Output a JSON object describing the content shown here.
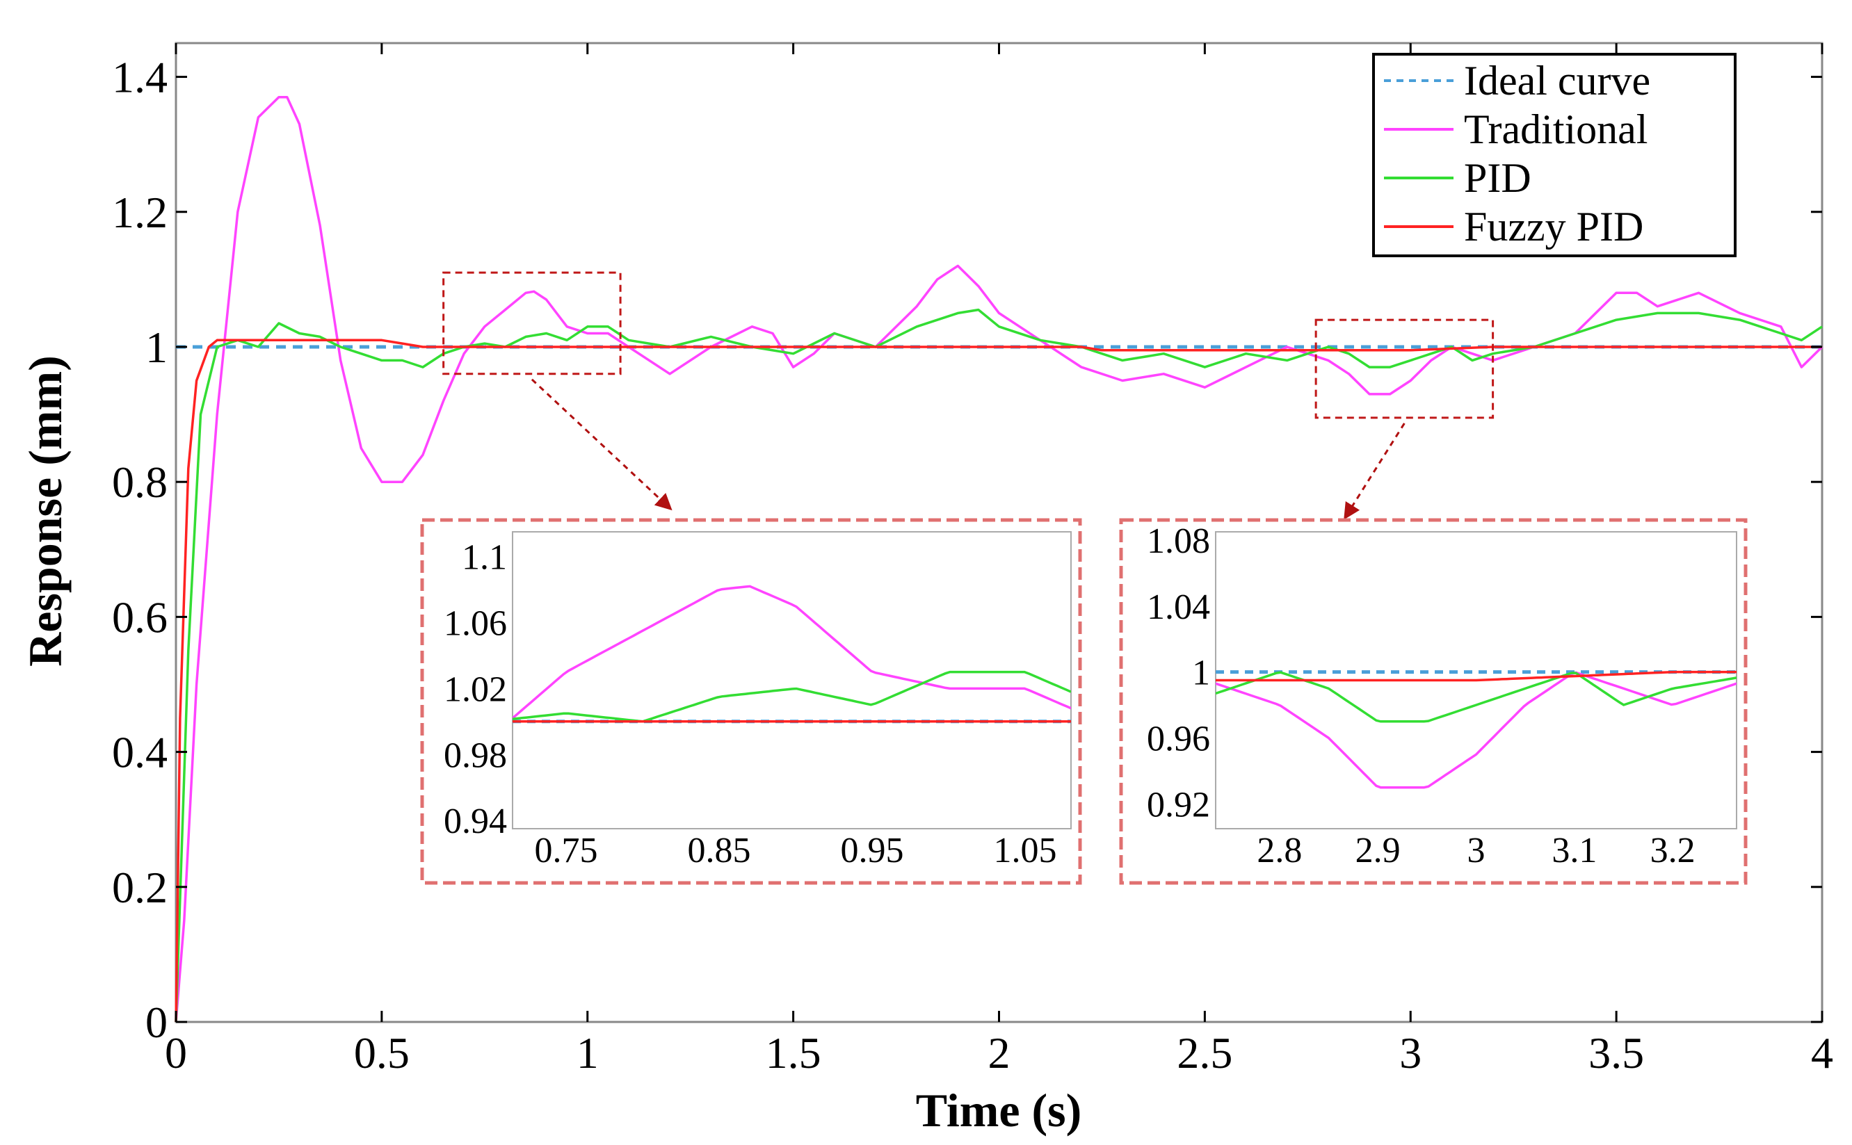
{
  "chart_data": {
    "type": "line",
    "xlabel": "Time (s)",
    "ylabel": "Response (mm)",
    "xlim": [
      0,
      4
    ],
    "ylim": [
      0,
      1.45
    ],
    "xticks": [
      0,
      0.5,
      1,
      1.5,
      2,
      2.5,
      3,
      3.5,
      4
    ],
    "xtick_labels": [
      "0",
      "0.5",
      "1",
      "1.5",
      "2",
      "2.5",
      "3",
      "3.5",
      "4"
    ],
    "yticks": [
      0,
      0.2,
      0.4,
      0.6,
      0.8,
      1,
      1.2,
      1.4
    ],
    "ytick_labels": [
      "0",
      "0.2",
      "0.4",
      "0.6",
      "0.8",
      "1",
      "1.2",
      "1.4"
    ],
    "legend": {
      "position": "top-right",
      "entries": [
        "Ideal curve",
        "Traditional",
        "PID",
        "Fuzzy PID"
      ]
    },
    "series": [
      {
        "name": "Ideal curve",
        "color": "#4a9fd8",
        "style": "dashed",
        "x": [
          0,
          4
        ],
        "y": [
          1.0,
          1.0
        ]
      },
      {
        "name": "Traditional",
        "color": "#ff44ff",
        "style": "solid",
        "x": [
          0,
          0.02,
          0.05,
          0.1,
          0.15,
          0.2,
          0.25,
          0.27,
          0.3,
          0.35,
          0.4,
          0.45,
          0.5,
          0.55,
          0.6,
          0.65,
          0.7,
          0.75,
          0.8,
          0.85,
          0.87,
          0.9,
          0.95,
          1.0,
          1.05,
          1.1,
          1.2,
          1.3,
          1.4,
          1.45,
          1.5,
          1.55,
          1.6,
          1.7,
          1.8,
          1.85,
          1.9,
          1.95,
          2.0,
          2.05,
          2.1,
          2.2,
          2.3,
          2.4,
          2.5,
          2.6,
          2.7,
          2.75,
          2.8,
          2.85,
          2.9,
          2.95,
          3.0,
          3.05,
          3.1,
          3.15,
          3.2,
          3.3,
          3.4,
          3.5,
          3.55,
          3.6,
          3.7,
          3.8,
          3.9,
          3.95,
          4.0
        ],
        "y": [
          0.0,
          0.15,
          0.5,
          0.9,
          1.2,
          1.34,
          1.37,
          1.37,
          1.33,
          1.18,
          0.98,
          0.85,
          0.8,
          0.8,
          0.84,
          0.92,
          0.99,
          1.03,
          1.055,
          1.08,
          1.082,
          1.07,
          1.03,
          1.02,
          1.02,
          1.0,
          0.96,
          1.0,
          1.03,
          1.02,
          0.97,
          0.99,
          1.02,
          1.0,
          1.06,
          1.1,
          1.12,
          1.09,
          1.05,
          1.03,
          1.01,
          0.97,
          0.95,
          0.96,
          0.94,
          0.97,
          1.0,
          0.99,
          0.98,
          0.96,
          0.93,
          0.93,
          0.95,
          0.98,
          1.0,
          0.99,
          0.98,
          1.0,
          1.02,
          1.08,
          1.08,
          1.06,
          1.08,
          1.05,
          1.03,
          0.97,
          1.0
        ]
      },
      {
        "name": "PID",
        "color": "#33dd33",
        "style": "solid",
        "x": [
          0,
          0.03,
          0.06,
          0.1,
          0.15,
          0.2,
          0.25,
          0.3,
          0.35,
          0.4,
          0.45,
          0.5,
          0.55,
          0.6,
          0.65,
          0.7,
          0.75,
          0.8,
          0.85,
          0.9,
          0.95,
          1.0,
          1.05,
          1.1,
          1.2,
          1.3,
          1.4,
          1.5,
          1.6,
          1.7,
          1.8,
          1.9,
          1.95,
          2.0,
          2.1,
          2.2,
          2.3,
          2.4,
          2.5,
          2.6,
          2.7,
          2.8,
          2.85,
          2.9,
          2.95,
          3.0,
          3.05,
          3.1,
          3.15,
          3.2,
          3.3,
          3.4,
          3.5,
          3.6,
          3.7,
          3.8,
          3.9,
          3.95,
          4.0
        ],
        "y": [
          0.0,
          0.55,
          0.9,
          1.0,
          1.01,
          1.0,
          1.035,
          1.02,
          1.015,
          1.0,
          0.99,
          0.98,
          0.98,
          0.97,
          0.99,
          1.0,
          1.005,
          1.0,
          1.015,
          1.02,
          1.01,
          1.03,
          1.03,
          1.01,
          1.0,
          1.015,
          1.0,
          0.99,
          1.02,
          1.0,
          1.03,
          1.05,
          1.055,
          1.03,
          1.01,
          1.0,
          0.98,
          0.99,
          0.97,
          0.99,
          0.98,
          1.0,
          0.99,
          0.97,
          0.97,
          0.98,
          0.99,
          1.0,
          0.98,
          0.99,
          1.0,
          1.02,
          1.04,
          1.05,
          1.05,
          1.04,
          1.02,
          1.01,
          1.03
        ]
      },
      {
        "name": "Fuzzy PID",
        "color": "#ff2222",
        "style": "solid",
        "x": [
          0,
          0.01,
          0.03,
          0.05,
          0.08,
          0.1,
          0.12,
          0.15,
          0.3,
          0.5,
          0.55,
          0.6,
          1.0,
          1.5,
          2.0,
          2.2,
          2.25,
          2.5,
          2.8,
          3.0,
          3.2,
          3.3,
          4.0
        ],
        "y": [
          0.0,
          0.45,
          0.82,
          0.95,
          1.0,
          1.01,
          1.01,
          1.01,
          1.01,
          1.01,
          1.005,
          1.0,
          1.0,
          1.0,
          1.0,
          1.0,
          0.995,
          0.995,
          0.995,
          0.995,
          1.0,
          1.0,
          1.0
        ]
      }
    ],
    "insets": [
      {
        "xlim": [
          0.715,
          1.08
        ],
        "ylim": [
          0.935,
          1.115
        ],
        "xticks": [
          0.75,
          0.85,
          0.95,
          1.05
        ],
        "xtick_labels": [
          "0.75",
          "0.85",
          "0.95",
          "1.05"
        ],
        "yticks": [
          0.94,
          0.98,
          1.02,
          1.06,
          1.1
        ],
        "ytick_labels": [
          "0.94",
          "0.98",
          "1.02",
          "1.06",
          "1.1"
        ],
        "source_box": {
          "x": [
            0.65,
            1.08
          ],
          "y": [
            0.96,
            1.11
          ]
        }
      },
      {
        "xlim": [
          2.735,
          3.265
        ],
        "ylim": [
          0.905,
          1.085
        ],
        "xticks": [
          2.8,
          2.9,
          3,
          3.1,
          3.2
        ],
        "xtick_labels": [
          "2.8",
          "2.9",
          "3",
          "3.1",
          "3.2"
        ],
        "yticks": [
          0.92,
          0.96,
          1,
          1.04,
          1.08
        ],
        "ytick_labels": [
          "0.92",
          "0.96",
          "1",
          "1.04",
          "1.08"
        ],
        "source_box": {
          "x": [
            2.77,
            3.2
          ],
          "y": [
            0.895,
            1.04
          ]
        }
      }
    ]
  }
}
